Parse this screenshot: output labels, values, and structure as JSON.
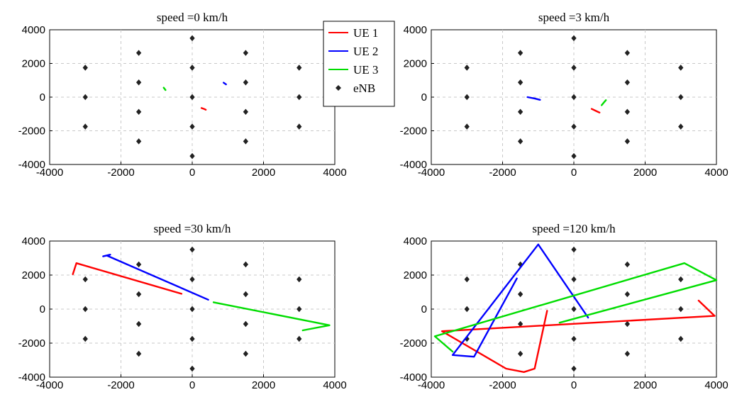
{
  "figure": {
    "enb_positions": [
      [
        0,
        3500
      ],
      [
        0,
        1750
      ],
      [
        0,
        0
      ],
      [
        0,
        -1750
      ],
      [
        0,
        -3500
      ],
      [
        -1500,
        2625
      ],
      [
        -1500,
        875
      ],
      [
        -1500,
        -875
      ],
      [
        -1500,
        -2625
      ],
      [
        1500,
        2625
      ],
      [
        1500,
        875
      ],
      [
        1500,
        -875
      ],
      [
        1500,
        -2625
      ],
      [
        -3000,
        1750
      ],
      [
        -3000,
        0
      ],
      [
        -3000,
        -1750
      ],
      [
        3000,
        1750
      ],
      [
        3000,
        0
      ],
      [
        3000,
        -1750
      ]
    ],
    "legend": [
      {
        "label": "UE 1",
        "color": "#ff0000",
        "marker": "line"
      },
      {
        "label": "UE 2",
        "color": "#0000ff",
        "marker": "line"
      },
      {
        "label": "UE 3",
        "color": "#00dd00",
        "marker": "line"
      },
      {
        "label": "eNB",
        "color": "#000000",
        "marker": "diamond"
      }
    ]
  },
  "chart_data": [
    {
      "type": "line",
      "title": "speed =0 km/h",
      "xlim": [
        -4000,
        4000
      ],
      "ylim": [
        -4000,
        4000
      ],
      "xticks": [
        "-4000",
        "-2000",
        "0",
        "2000",
        "4000"
      ],
      "yticks": [
        "4000",
        "2000",
        "0",
        "-2000",
        "-4000"
      ],
      "grid": true,
      "series": [
        {
          "name": "UE 1",
          "color": "#ff0000",
          "points": [
            [
              260,
              -650
            ],
            [
              330,
              -700
            ],
            [
              380,
              -750
            ]
          ]
        },
        {
          "name": "UE 2",
          "color": "#0000ff",
          "points": [
            [
              880,
              860
            ],
            [
              920,
              800
            ],
            [
              950,
              760
            ]
          ]
        },
        {
          "name": "UE 3",
          "color": "#00dd00",
          "points": [
            [
              -800,
              560
            ],
            [
              -770,
              480
            ],
            [
              -750,
              420
            ]
          ]
        }
      ]
    },
    {
      "type": "line",
      "title": "speed =3 km/h",
      "xlim": [
        -4000,
        4000
      ],
      "ylim": [
        -4000,
        4000
      ],
      "xticks": [
        "-4000",
        "-2000",
        "0",
        "2000",
        "4000"
      ],
      "yticks": [
        "4000",
        "2000",
        "0",
        "-2000",
        "-4000"
      ],
      "grid": true,
      "series": [
        {
          "name": "UE 1",
          "color": "#ff0000",
          "points": [
            [
              500,
              -700
            ],
            [
              620,
              -820
            ],
            [
              720,
              -920
            ]
          ]
        },
        {
          "name": "UE 2",
          "color": "#0000ff",
          "points": [
            [
              -1300,
              0
            ],
            [
              -1100,
              -80
            ],
            [
              -950,
              -160
            ]
          ]
        },
        {
          "name": "UE 3",
          "color": "#00dd00",
          "points": [
            [
              780,
              -480
            ],
            [
              850,
              -300
            ],
            [
              900,
              -180
            ]
          ]
        }
      ]
    },
    {
      "type": "line",
      "title": "speed =30 km/h",
      "xlim": [
        -4000,
        4000
      ],
      "ylim": [
        -4000,
        4000
      ],
      "xticks": [
        "-4000",
        "-2000",
        "0",
        "2000",
        "4000"
      ],
      "yticks": [
        "4000",
        "2000",
        "0",
        "-2000",
        "-4000"
      ],
      "grid": true,
      "series": [
        {
          "name": "UE 1",
          "color": "#ff0000",
          "points": [
            [
              -300,
              900
            ],
            [
              -3250,
              2700
            ],
            [
              -3350,
              2050
            ]
          ]
        },
        {
          "name": "UE 2",
          "color": "#0000ff",
          "points": [
            [
              450,
              550
            ],
            [
              -2400,
              3150
            ],
            [
              -2500,
              3100
            ],
            [
              -2300,
              3200
            ]
          ]
        },
        {
          "name": "UE 3",
          "color": "#00dd00",
          "points": [
            [
              600,
              400
            ],
            [
              3850,
              -950
            ],
            [
              3100,
              -1250
            ]
          ]
        }
      ]
    },
    {
      "type": "line",
      "title": "speed =120 km/h",
      "xlim": [
        -4000,
        4000
      ],
      "ylim": [
        -4000,
        4000
      ],
      "xticks": [
        "-4000",
        "-2000",
        "0",
        "2000",
        "4000"
      ],
      "yticks": [
        "4000",
        "2000",
        "0",
        "-2000",
        "-4000"
      ],
      "grid": true,
      "series": [
        {
          "name": "UE 1",
          "color": "#ff0000",
          "points": [
            [
              3500,
              500
            ],
            [
              3950,
              -400
            ],
            [
              -3700,
              -1300
            ],
            [
              -1900,
              -3500
            ],
            [
              -1400,
              -3700
            ],
            [
              -1100,
              -3500
            ],
            [
              -750,
              -100
            ]
          ]
        },
        {
          "name": "UE 2",
          "color": "#0000ff",
          "points": [
            [
              400,
              -500
            ],
            [
              -1000,
              3800
            ],
            [
              -3400,
              -2700
            ],
            [
              -2800,
              -2800
            ],
            [
              -1600,
              1800
            ]
          ]
        },
        {
          "name": "UE 3",
          "color": "#00dd00",
          "points": [
            [
              -3400,
              -2500
            ],
            [
              -3900,
              -1600
            ],
            [
              3100,
              2700
            ],
            [
              4000,
              1700
            ],
            [
              -400,
              -800
            ]
          ]
        }
      ]
    }
  ]
}
